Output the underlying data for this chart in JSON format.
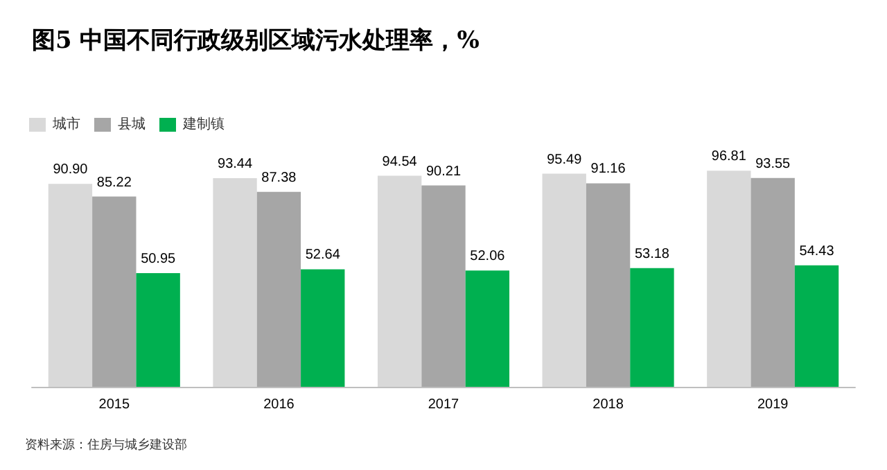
{
  "chart_data": {
    "type": "bar",
    "title": "图5 中国不同行政级别区域污水处理率，%",
    "categories": [
      "2015",
      "2016",
      "2017",
      "2018",
      "2019"
    ],
    "series": [
      {
        "name": "城市",
        "color": "#d9d9d9",
        "values": [
          90.9,
          93.44,
          94.54,
          95.49,
          96.81
        ],
        "value_labels": [
          "90.90",
          "93.44",
          "94.54",
          "95.49",
          "96.81"
        ]
      },
      {
        "name": "县城",
        "color": "#a6a6a6",
        "values": [
          85.22,
          87.38,
          90.21,
          91.16,
          93.55
        ],
        "value_labels": [
          "85.22",
          "87.38",
          "90.21",
          "91.16",
          "93.55"
        ]
      },
      {
        "name": "建制镇",
        "color": "#00b050",
        "values": [
          50.95,
          52.64,
          52.06,
          53.18,
          54.43
        ],
        "value_labels": [
          "50.95",
          "52.64",
          "52.06",
          "53.18",
          "54.43"
        ]
      }
    ],
    "legend": "top left",
    "grid": false,
    "tick_labels": "x",
    "annotations": [
      "资料来源：住房与城乡建设部"
    ]
  }
}
